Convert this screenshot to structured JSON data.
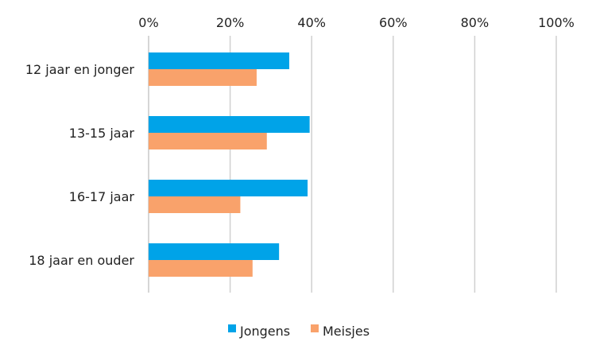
{
  "chart_data": {
    "type": "bar",
    "orientation": "horizontal",
    "categories": [
      "12 jaar en jonger",
      "13-15 jaar",
      "16-17 jaar",
      "18 jaar en ouder"
    ],
    "series": [
      {
        "name": "Jongens",
        "values": [
          34.5,
          39.5,
          39,
          32
        ],
        "color": "#00a3e8"
      },
      {
        "name": "Meisjes",
        "values": [
          26.5,
          29,
          22.5,
          25.5
        ],
        "color": "#f9a26b"
      }
    ],
    "xlim": [
      0,
      100
    ],
    "xticks": [
      0,
      20,
      40,
      60,
      80,
      100
    ],
    "tick_labels": [
      "0%",
      "20%",
      "40%",
      "60%",
      "80%",
      "100%"
    ],
    "tick_label_position": "top",
    "grid": true,
    "grid_color": "#d0d0d0",
    "legend_position": "bottom"
  }
}
